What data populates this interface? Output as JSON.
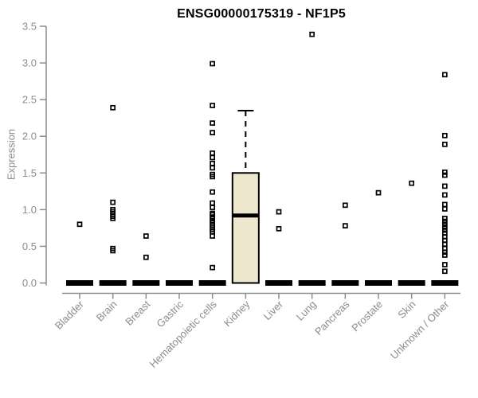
{
  "chart_data": {
    "type": "boxplot",
    "title": "ENSG00000175319 - NF1P5",
    "ylabel": "Expression",
    "xlabel": "",
    "ylim": [
      0,
      3.5
    ],
    "yticks": [
      "0.0",
      "0.5",
      "1.0",
      "1.5",
      "2.0",
      "2.5",
      "3.0",
      "3.5"
    ],
    "grid": "off",
    "legend": "none",
    "categories": [
      "Bladder",
      "Brain",
      "Breast",
      "Gastric",
      "Hematopoietic cells",
      "Kidney",
      "Liver",
      "Lung",
      "Pancreas",
      "Prostate",
      "Skin",
      "Unknown / Other"
    ],
    "groups": [
      {
        "category": "Bladder",
        "zero_bar": true,
        "points": [
          0.8
        ]
      },
      {
        "category": "Brain",
        "zero_bar": true,
        "points": [
          2.39,
          1.1,
          1.0,
          0.97,
          0.94,
          0.91,
          0.88,
          0.47,
          0.44
        ]
      },
      {
        "category": "Breast",
        "zero_bar": true,
        "points": [
          0.64,
          0.35
        ]
      },
      {
        "category": "Gastric",
        "zero_bar": true,
        "points": []
      },
      {
        "category": "Hematopoietic cells",
        "zero_bar": true,
        "points": [
          2.99,
          2.42,
          2.18,
          2.05,
          1.77,
          1.71,
          1.63,
          1.57,
          1.48,
          1.45,
          1.24,
          1.09,
          1.03,
          0.95,
          0.93,
          0.9,
          0.88,
          0.85,
          0.82,
          0.79,
          0.76,
          0.73,
          0.7,
          0.64,
          0.21
        ]
      },
      {
        "category": "Kidney",
        "zero_bar": false,
        "points": [],
        "box": {
          "q1": 0,
          "median": 0.92,
          "q3": 1.5,
          "whisker_high": 2.35,
          "whisker_low": 0
        }
      },
      {
        "category": "Liver",
        "zero_bar": true,
        "points": [
          0.97,
          0.74
        ]
      },
      {
        "category": "Lung",
        "zero_bar": true,
        "points": [
          3.39
        ]
      },
      {
        "category": "Pancreas",
        "zero_bar": true,
        "points": [
          1.06,
          0.78
        ]
      },
      {
        "category": "Prostate",
        "zero_bar": true,
        "points": [
          1.23
        ]
      },
      {
        "category": "Skin",
        "zero_bar": true,
        "points": [
          1.36
        ]
      },
      {
        "category": "Unknown / Other",
        "zero_bar": true,
        "points": [
          2.84,
          2.01,
          1.89,
          1.51,
          1.47,
          1.32,
          1.2,
          1.07,
          1.01,
          0.88,
          0.84,
          0.8,
          0.76,
          0.72,
          0.68,
          0.63,
          0.58,
          0.53,
          0.47,
          0.42,
          0.38,
          0.25,
          0.16
        ]
      }
    ],
    "colors": {
      "box_fill": "#ede8cd",
      "box_border": "#000000",
      "median": "#000000",
      "whisker": "#000000",
      "point": "#000000",
      "zero_bar": "#000000",
      "axis": "#8c8c8c",
      "tick_label": "#8c8c8c",
      "title": "#000000",
      "background": "#ffffff"
    }
  }
}
